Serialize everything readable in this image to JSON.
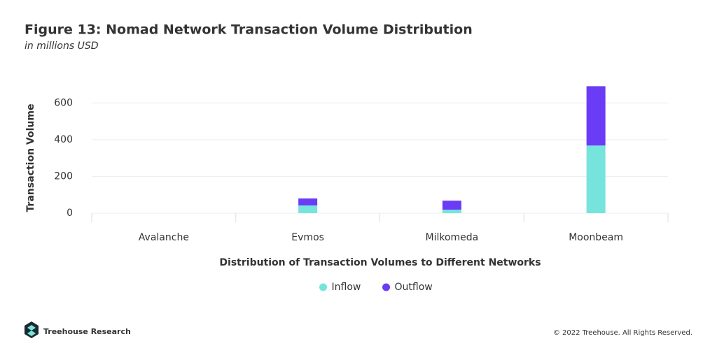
{
  "chart_data": {
    "type": "stacked_bar",
    "title": "Figure 13: Nomad Network Transaction Volume Distribution",
    "subtitle": "in millions USD",
    "x_label": "Distribution of Transaction Volumes to Different Networks",
    "y_label": "Transaction Volume",
    "categories": [
      "Avalanche",
      "Evmos",
      "Milkomeda",
      "Moonbeam"
    ],
    "series": [
      {
        "name": "Inflow",
        "color": "#76e4dc",
        "values": [
          0,
          42,
          19,
          368
        ]
      },
      {
        "name": "Outflow",
        "color": "#6a3cf5",
        "values": [
          0,
          38,
          49,
          323
        ]
      }
    ],
    "ylim": [
      0,
      700
    ],
    "yticks": [
      0,
      200,
      400,
      600
    ],
    "grid": true,
    "legend": "bottom"
  },
  "footer": {
    "brand": "Treehouse Research",
    "copyright": "© 2022 Treehouse. All Rights Reserved."
  }
}
